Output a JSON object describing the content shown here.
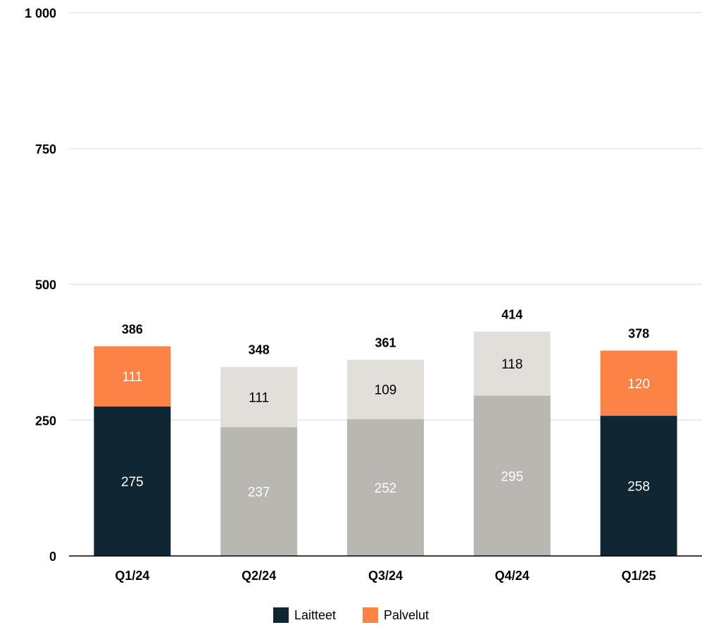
{
  "chart_data": {
    "type": "bar",
    "stacked": true,
    "title": "",
    "xlabel": "",
    "ylabel": "",
    "ylim": [
      0,
      1000
    ],
    "yticks": [
      0,
      250,
      500,
      750,
      1000
    ],
    "ytick_labels": [
      "0",
      "250",
      "500",
      "750",
      "1 000"
    ],
    "grid": true,
    "legend_position": "bottom-center",
    "categories": [
      "Q1/24",
      "Q2/24",
      "Q3/24",
      "Q4/24",
      "Q1/25"
    ],
    "series": [
      {
        "name": "Laitteet",
        "values": [
          275,
          237,
          252,
          295,
          258
        ],
        "colors": [
          "#102733",
          "#b8b7b2",
          "#b8b7b2",
          "#b8b7b2",
          "#102733"
        ]
      },
      {
        "name": "Palvelut",
        "values": [
          111,
          111,
          109,
          118,
          120
        ],
        "colors": [
          "#fd8245",
          "#e2dfdb",
          "#e2dfdb",
          "#e2dfdb",
          "#fd8245"
        ]
      }
    ],
    "totals": [
      386,
      348,
      361,
      414,
      378
    ],
    "legend": [
      {
        "label": "Laitteet",
        "color": "#102733"
      },
      {
        "label": "Palvelut",
        "color": "#fd8245"
      }
    ]
  }
}
